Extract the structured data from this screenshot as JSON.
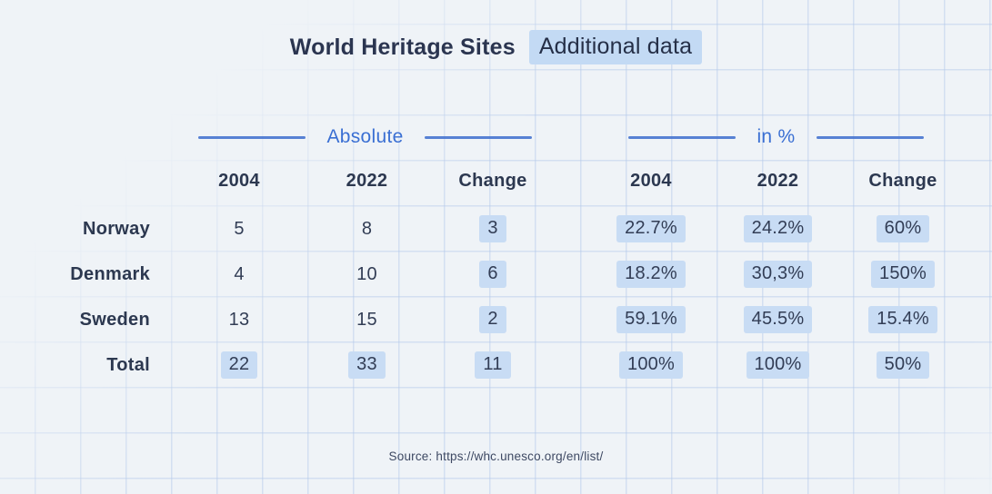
{
  "title": {
    "main": "World Heritage Sites",
    "highlighted": "Additional data"
  },
  "table": {
    "groups": [
      {
        "label": "Absolute"
      },
      {
        "label": "in %"
      }
    ],
    "columns": [
      "2004",
      "2022",
      "Change",
      "2004",
      "2022",
      "Change"
    ],
    "rows": [
      {
        "label": "Norway",
        "cells": [
          {
            "text": "5",
            "highlighted": false
          },
          {
            "text": "8",
            "highlighted": false
          },
          {
            "text": "3",
            "highlighted": true
          },
          {
            "text": "22.7%",
            "highlighted": true
          },
          {
            "text": "24.2%",
            "highlighted": true
          },
          {
            "text": "60%",
            "highlighted": true
          }
        ]
      },
      {
        "label": "Denmark",
        "cells": [
          {
            "text": "4",
            "highlighted": false
          },
          {
            "text": "10",
            "highlighted": false
          },
          {
            "text": "6",
            "highlighted": true
          },
          {
            "text": "18.2%",
            "highlighted": true
          },
          {
            "text": "30,3%",
            "highlighted": true
          },
          {
            "text": "150%",
            "highlighted": true
          }
        ]
      },
      {
        "label": "Sweden",
        "cells": [
          {
            "text": "13",
            "highlighted": false
          },
          {
            "text": "15",
            "highlighted": false
          },
          {
            "text": "2",
            "highlighted": true
          },
          {
            "text": "59.1%",
            "highlighted": true
          },
          {
            "text": "45.5%",
            "highlighted": true
          },
          {
            "text": "15.4%",
            "highlighted": true
          }
        ]
      },
      {
        "label": "Total",
        "cells": [
          {
            "text": "22",
            "highlighted": true
          },
          {
            "text": "33",
            "highlighted": true
          },
          {
            "text": "11",
            "highlighted": true
          },
          {
            "text": "100%",
            "highlighted": true
          },
          {
            "text": "100%",
            "highlighted": true
          },
          {
            "text": "50%",
            "highlighted": true
          }
        ]
      }
    ]
  },
  "source": "Source: https://whc.unesco.org/en/list/",
  "colors": {
    "background": "#eff3f7",
    "grid_line": "#d8e3f3",
    "accent_blue": "#3a6fd3",
    "highlight": "#c8dcf4",
    "text_dark": "#2c3850"
  },
  "chart_data": {
    "type": "table",
    "title": "World Heritage Sites",
    "subtitle": "Additional data",
    "column_groups": [
      "Absolute",
      "in %"
    ],
    "columns": [
      "2004",
      "2022",
      "Change",
      "2004",
      "2022",
      "Change"
    ],
    "rows": [
      {
        "label": "Norway",
        "values": [
          "5",
          "8",
          "3",
          "22.7%",
          "24.2%",
          "60%"
        ]
      },
      {
        "label": "Denmark",
        "values": [
          "4",
          "10",
          "6",
          "18.2%",
          "30,3%",
          "150%"
        ]
      },
      {
        "label": "Sweden",
        "values": [
          "13",
          "15",
          "2",
          "59.1%",
          "45.5%",
          "15.4%"
        ]
      },
      {
        "label": "Total",
        "values": [
          "22",
          "33",
          "11",
          "100%",
          "100%",
          "50%"
        ]
      }
    ],
    "source": "Source: https://whc.unesco.org/en/list/"
  }
}
